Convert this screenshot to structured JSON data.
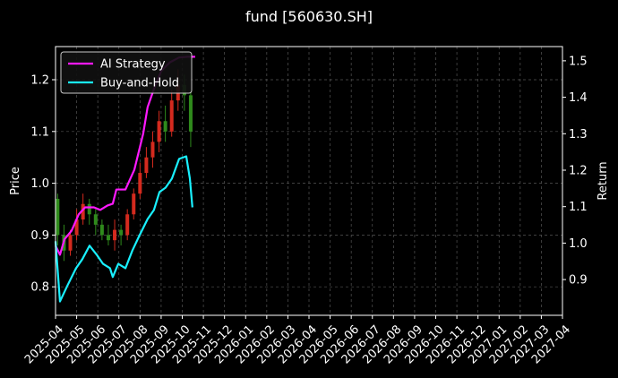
{
  "chart_data": {
    "type": "candlestick",
    "title": "fund [560630.SH]",
    "ylabel": "Price",
    "y2label": "Return",
    "xlim": [
      0,
      24
    ],
    "xticks": [
      {
        "value": 0,
        "label": "2025-04"
      },
      {
        "value": 1,
        "label": "2025-05"
      },
      {
        "value": 2,
        "label": "2025-06"
      },
      {
        "value": 3,
        "label": "2025-07"
      },
      {
        "value": 4,
        "label": "2025-08"
      },
      {
        "value": 5,
        "label": "2025-09"
      },
      {
        "value": 6,
        "label": "2025-10"
      },
      {
        "value": 7,
        "label": "2025-11"
      },
      {
        "value": 8,
        "label": "2025-12"
      },
      {
        "value": 9,
        "label": "2026-01"
      },
      {
        "value": 10,
        "label": "2026-02"
      },
      {
        "value": 11,
        "label": "2026-03"
      },
      {
        "value": 12,
        "label": "2026-04"
      },
      {
        "value": 13,
        "label": "2026-05"
      },
      {
        "value": 14,
        "label": "2026-06"
      },
      {
        "value": 15,
        "label": "2026-07"
      },
      {
        "value": 16,
        "label": "2026-08"
      },
      {
        "value": 17,
        "label": "2026-09"
      },
      {
        "value": 18,
        "label": "2026-10"
      },
      {
        "value": 19,
        "label": "2026-11"
      },
      {
        "value": 20,
        "label": "2026-12"
      },
      {
        "value": 21,
        "label": "2027-01"
      },
      {
        "value": 22,
        "label": "2027-02"
      },
      {
        "value": 23,
        "label": "2027-03"
      },
      {
        "value": 24,
        "label": "2027-04"
      }
    ],
    "ylim": [
      0.745,
      1.264
    ],
    "yticks": [
      0.8,
      0.9,
      {
        "value": 1.0,
        "label": "1.0"
      },
      1.1,
      1.2
    ],
    "y2lim": [
      0.802,
      1.539
    ],
    "y2ticks": [
      0.9,
      {
        "value": 1.0,
        "label": "1.0"
      },
      1.1,
      1.2,
      1.3,
      1.4,
      1.5
    ],
    "grid": true,
    "legend": "upper left",
    "up_color": "#d42a1e",
    "down_color": "#2f8a1c",
    "candles": {
      "x": [
        0.1,
        0.4,
        0.7,
        1.0,
        1.3,
        1.6,
        1.9,
        2.2,
        2.5,
        2.8,
        3.1,
        3.4,
        3.7,
        4.0,
        4.3,
        4.6,
        4.9,
        5.2,
        5.5,
        5.8,
        6.1,
        6.4
      ],
      "open": [
        0.97,
        0.9,
        0.87,
        0.9,
        0.93,
        0.96,
        0.94,
        0.92,
        0.9,
        0.89,
        0.91,
        0.9,
        0.94,
        0.98,
        1.02,
        1.05,
        1.08,
        1.12,
        1.1,
        1.16,
        1.19,
        1.17
      ],
      "close": [
        0.9,
        0.87,
        0.9,
        0.93,
        0.96,
        0.94,
        0.92,
        0.9,
        0.89,
        0.91,
        0.9,
        0.94,
        0.98,
        1.02,
        1.05,
        1.08,
        1.12,
        1.1,
        1.16,
        1.19,
        1.17,
        1.1
      ],
      "high": [
        0.98,
        0.92,
        0.91,
        0.95,
        0.98,
        0.97,
        0.95,
        0.93,
        0.92,
        0.93,
        0.92,
        0.95,
        0.99,
        1.04,
        1.07,
        1.1,
        1.14,
        1.15,
        1.18,
        1.22,
        1.21,
        1.18
      ],
      "low": [
        0.88,
        0.85,
        0.86,
        0.89,
        0.92,
        0.92,
        0.9,
        0.89,
        0.88,
        0.87,
        0.88,
        0.89,
        0.93,
        0.97,
        1.01,
        1.03,
        1.06,
        1.08,
        1.09,
        1.14,
        1.14,
        1.07
      ]
    },
    "series": [
      {
        "name": "AI Strategy",
        "color": "#ff19ff",
        "axis": "y2",
        "x": [
          0,
          0.21,
          0.42,
          0.76,
          1.1,
          1.4,
          1.82,
          2.12,
          2.46,
          2.71,
          2.88,
          3.31,
          3.73,
          4.15,
          4.36,
          4.66,
          5.0,
          5.42,
          5.85,
          6.27,
          6.61
        ],
        "values": [
          0.993,
          0.968,
          1.01,
          1.034,
          1.079,
          1.098,
          1.098,
          1.091,
          1.103,
          1.108,
          1.147,
          1.147,
          1.201,
          1.3,
          1.373,
          1.423,
          1.472,
          1.496,
          1.509,
          1.511,
          1.511
        ]
      },
      {
        "name": "Buy-and-Hold",
        "color": "#19f0ff",
        "axis": "y2",
        "x": [
          0,
          0.21,
          0.55,
          0.97,
          1.27,
          1.61,
          1.95,
          2.25,
          2.58,
          2.71,
          2.97,
          3.31,
          3.64,
          3.94,
          4.36,
          4.66,
          4.92,
          5.21,
          5.51,
          5.85,
          6.19,
          6.36,
          6.48
        ],
        "values": [
          1.005,
          0.84,
          0.882,
          0.931,
          0.956,
          0.993,
          0.968,
          0.943,
          0.931,
          0.907,
          0.943,
          0.931,
          0.98,
          1.017,
          1.066,
          1.091,
          1.14,
          1.152,
          1.177,
          1.231,
          1.238,
          1.177,
          1.098
        ]
      }
    ]
  }
}
